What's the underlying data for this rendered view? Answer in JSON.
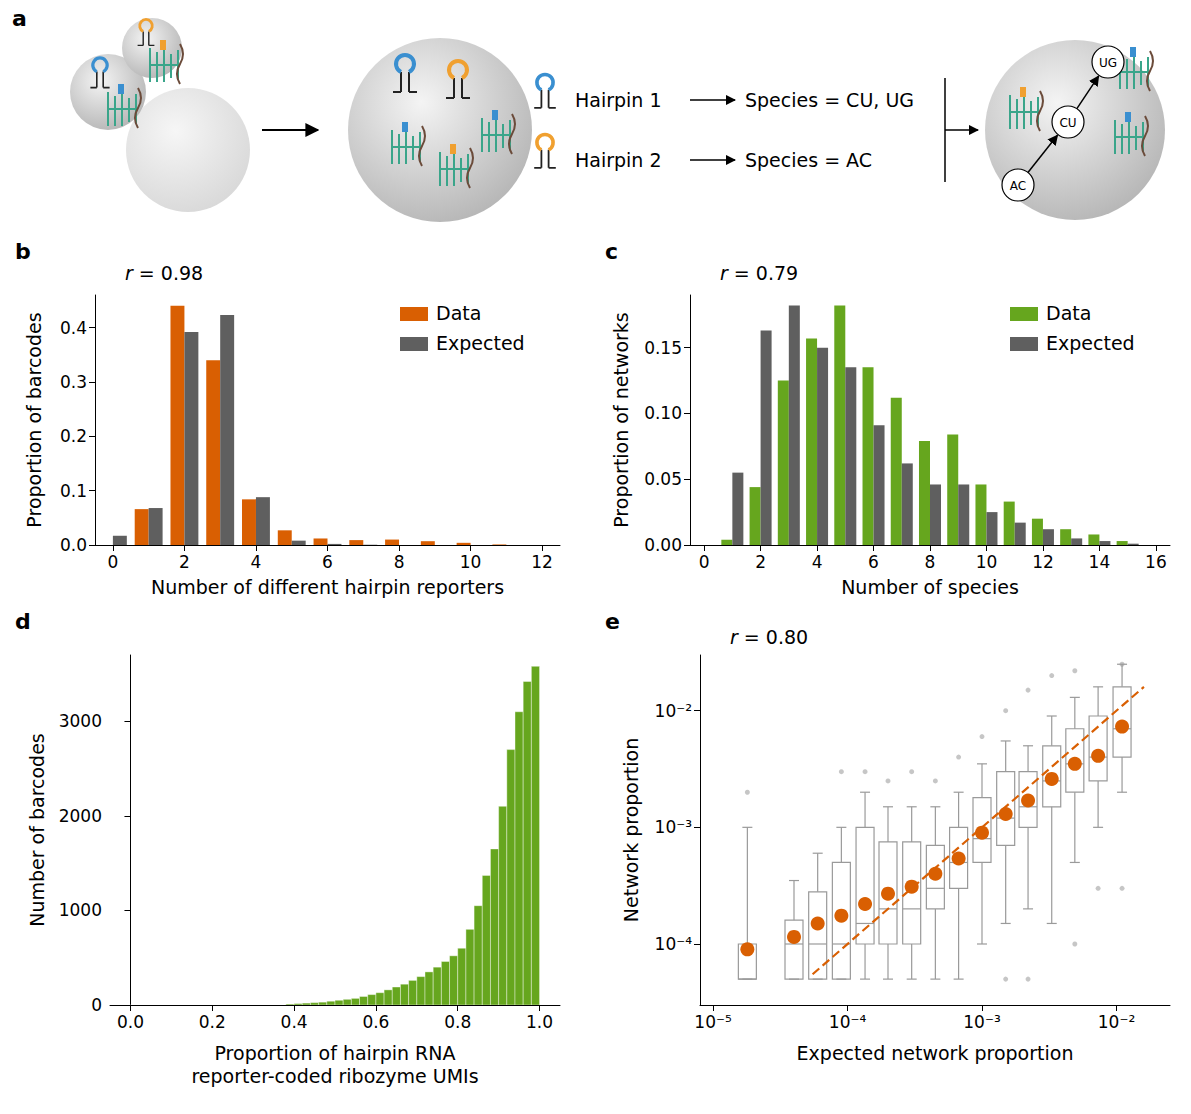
{
  "diagram": {
    "panel_label": "a",
    "hairpins": [
      {
        "name": "Hairpin 1",
        "species": "Species = CU, UG"
      },
      {
        "name": "Hairpin 2",
        "species": "Species = AC"
      }
    ],
    "network": {
      "nodes": [
        "AC",
        "CU",
        "UG"
      ],
      "edges": [
        [
          "AC",
          "CU"
        ],
        [
          "CU",
          "UG"
        ]
      ]
    }
  },
  "chart_data": [
    {
      "panel_label": "b",
      "type": "bar",
      "annotation": "r = 0.98",
      "x_label": "Number of different hairpin reporters",
      "y_label": "Proportion of barcodes",
      "categories": [
        "0",
        null,
        "2",
        null,
        "4",
        null,
        "6",
        null,
        "8",
        null,
        "10",
        null,
        "12"
      ],
      "series": [
        {
          "name": "Data",
          "color": "#d95f02",
          "values": [
            0,
            0.066,
            0.44,
            0.34,
            0.084,
            0.027,
            0.012,
            0.009,
            0.01,
            0.007,
            0.004,
            0.001,
            0
          ]
        },
        {
          "name": "Expected",
          "color": "#5f5f5f",
          "values": [
            0.017,
            0.068,
            0.392,
            0.423,
            0.088,
            0.008,
            0.002,
            0.0005,
            0,
            0,
            0,
            0,
            0
          ]
        }
      ],
      "ylim": [
        0,
        0.46
      ],
      "yticks": [
        {
          "value": 0,
          "label": "0.0"
        },
        {
          "value": 0.1,
          "label": "0.1"
        },
        {
          "value": 0.2,
          "label": "0.2"
        },
        {
          "value": 0.3,
          "label": "0.3"
        },
        {
          "value": 0.4,
          "label": "0.4"
        }
      ],
      "grid": false,
      "legend": "upper right"
    },
    {
      "panel_label": "c",
      "type": "bar",
      "annotation": "r = 0.79",
      "x_label": "Number of species",
      "y_label": "Proportion of networks",
      "categories": [
        "0",
        null,
        "2",
        null,
        "4",
        null,
        "6",
        null,
        "8",
        null,
        "10",
        null,
        "12",
        null,
        "14",
        null,
        "16"
      ],
      "series": [
        {
          "name": "Data",
          "color": "#66a61e",
          "values": [
            0,
            0.004,
            0.044,
            0.125,
            0.157,
            0.182,
            0.135,
            0.112,
            0.079,
            0.084,
            0.046,
            0.033,
            0.02,
            0.012,
            0.008,
            0.003,
            0
          ]
        },
        {
          "name": "Expected",
          "color": "#5f5f5f",
          "values": [
            0,
            0.055,
            0.163,
            0.182,
            0.15,
            0.135,
            0.091,
            0.062,
            0.046,
            0.046,
            0.025,
            0.017,
            0.012,
            0.005,
            0.003,
            0.001,
            0
          ]
        }
      ],
      "ylim": [
        0,
        0.19
      ],
      "yticks": [
        {
          "value": 0,
          "label": "0.00"
        },
        {
          "value": 0.05,
          "label": "0.05"
        },
        {
          "value": 0.1,
          "label": "0.10"
        },
        {
          "value": 0.15,
          "label": "0.15"
        }
      ],
      "grid": false,
      "legend": "upper right"
    },
    {
      "panel_label": "d",
      "type": "histogram",
      "x_label": "Proportion of hairpin RNA\nreporter-coded ribozyme UMIs",
      "y_label": "Number of barcodes",
      "color": "#66a61e",
      "bins": [
        0,
        0.02,
        0.04,
        0.06,
        0.08,
        0.1,
        0.12,
        0.14,
        0.16,
        0.18,
        0.2,
        0.22,
        0.24,
        0.26,
        0.28,
        0.3,
        0.32,
        0.34,
        0.36,
        0.38,
        0.4,
        0.42,
        0.44,
        0.46,
        0.48,
        0.5,
        0.52,
        0.54,
        0.56,
        0.58,
        0.6,
        0.62,
        0.64,
        0.66,
        0.68,
        0.7,
        0.72,
        0.74,
        0.76,
        0.78,
        0.8,
        0.82,
        0.84,
        0.86,
        0.88,
        0.9,
        0.92,
        0.94,
        0.96,
        0.98,
        1.0
      ],
      "counts": [
        0,
        0,
        0,
        0,
        0,
        0,
        0,
        0,
        0,
        0,
        0,
        0,
        0,
        0,
        0,
        0,
        0,
        0,
        0,
        10,
        15,
        20,
        25,
        30,
        40,
        50,
        60,
        70,
        90,
        110,
        130,
        160,
        190,
        220,
        260,
        300,
        350,
        400,
        460,
        520,
        600,
        800,
        1050,
        1370,
        1650,
        2100,
        2700,
        3100,
        3420,
        3580
      ],
      "xlim": [
        -0.05,
        1.05
      ],
      "xticks": [
        {
          "value": 0,
          "label": "0.0"
        },
        {
          "value": 0.2,
          "label": "0.2"
        },
        {
          "value": 0.4,
          "label": "0.4"
        },
        {
          "value": 0.6,
          "label": "0.6"
        },
        {
          "value": 0.8,
          "label": "0.8"
        },
        {
          "value": 1,
          "label": "1.0"
        }
      ],
      "ylim": [
        0,
        3700
      ],
      "yticks": [
        0,
        1000,
        2000,
        3000
      ],
      "grid": false
    },
    {
      "panel_label": "e",
      "type": "boxplot",
      "annotation": "r = 0.80",
      "x_label": "Expected network proportion",
      "y_label": "Network proportion",
      "log": true,
      "xlim": [
        8e-06,
        0.025
      ],
      "xticks": [
        {
          "value": 1e-05,
          "label": "10⁻⁵"
        },
        {
          "value": 0.0001,
          "label": "10⁻⁴"
        },
        {
          "value": 0.001,
          "label": "10⁻³"
        },
        {
          "value": 0.01,
          "label": "10⁻²"
        }
      ],
      "ylim": [
        3e-05,
        0.03
      ],
      "yticks": [
        {
          "value": 0.0001,
          "label": "10⁻⁴"
        },
        {
          "value": 0.001,
          "label": "10⁻³"
        },
        {
          "value": 0.01,
          "label": "10⁻²"
        }
      ],
      "grid": false,
      "series": [
        {
          "type": "boxplot",
          "color": "#9a9a9a",
          "boxes": [
            {
              "x": 1.8e-05,
              "whisker_low": 5e-05,
              "q1": 5e-05,
              "median": 5e-05,
              "q3": 0.0001,
              "whisker_high": 0.001
            },
            {
              "x": 4e-05,
              "whisker_low": 5e-05,
              "q1": 5e-05,
              "median": 0.0001,
              "q3": 0.00016,
              "whisker_high": 0.00035
            },
            {
              "x": 6e-05,
              "whisker_low": 5e-05,
              "q1": 5e-05,
              "median": 0.0001,
              "q3": 0.00028,
              "whisker_high": 0.0006
            },
            {
              "x": 9e-05,
              "whisker_low": 5e-05,
              "q1": 5e-05,
              "median": 0.0001,
              "q3": 0.0005,
              "whisker_high": 0.001
            },
            {
              "x": 0.000135,
              "whisker_low": 5e-05,
              "q1": 0.0001,
              "median": 0.00015,
              "q3": 0.001,
              "whisker_high": 0.002
            },
            {
              "x": 0.0002,
              "whisker_low": 5e-05,
              "q1": 0.0001,
              "median": 0.0002,
              "q3": 0.00075,
              "whisker_high": 0.0015
            },
            {
              "x": 0.0003,
              "whisker_low": 5e-05,
              "q1": 0.0001,
              "median": 0.0002,
              "q3": 0.00075,
              "whisker_high": 0.0015
            },
            {
              "x": 0.00045,
              "whisker_low": 5e-05,
              "q1": 0.0002,
              "median": 0.0003,
              "q3": 0.0007,
              "whisker_high": 0.0015
            },
            {
              "x": 0.00067,
              "whisker_low": 5e-05,
              "q1": 0.0003,
              "median": 0.0005,
              "q3": 0.001,
              "whisker_high": 0.002
            },
            {
              "x": 0.001,
              "whisker_low": 0.0001,
              "q1": 0.0005,
              "median": 0.0008,
              "q3": 0.0018,
              "whisker_high": 0.0035
            },
            {
              "x": 0.0015,
              "whisker_low": 0.00015,
              "q1": 0.0007,
              "median": 0.0012,
              "q3": 0.003,
              "whisker_high": 0.0055
            },
            {
              "x": 0.0022,
              "whisker_low": 0.0002,
              "q1": 0.001,
              "median": 0.0015,
              "q3": 0.003,
              "whisker_high": 0.005
            },
            {
              "x": 0.0033,
              "whisker_low": 0.00015,
              "q1": 0.0015,
              "median": 0.0025,
              "q3": 0.005,
              "whisker_high": 0.009
            },
            {
              "x": 0.0049,
              "whisker_low": 0.0005,
              "q1": 0.002,
              "median": 0.0035,
              "q3": 0.007,
              "whisker_high": 0.013
            },
            {
              "x": 0.0073,
              "whisker_low": 0.001,
              "q1": 0.0025,
              "median": 0.004,
              "q3": 0.009,
              "whisker_high": 0.016
            },
            {
              "x": 0.011,
              "whisker_low": 0.002,
              "q1": 0.004,
              "median": 0.007,
              "q3": 0.016,
              "whisker_high": 0.025
            }
          ]
        },
        {
          "type": "scatter",
          "color": "#808080",
          "marker": "circle",
          "x": [
            1.8e-05,
            9e-05,
            0.000135,
            0.0002,
            0.0003,
            0.00045,
            0.00067,
            0.001,
            0.0015,
            0.0022,
            0.0033,
            0.0049,
            0.0073,
            0.011,
            0.011,
            0.0049,
            0.0022,
            0.0015
          ],
          "values": [
            0.002,
            0.003,
            0.003,
            0.0025,
            0.003,
            0.0025,
            0.004,
            0.006,
            0.01,
            0.015,
            0.02,
            0.0001,
            0.0003,
            0.0003,
            0.025,
            0.022,
            5e-05,
            5e-05
          ]
        },
        {
          "type": "line",
          "color": "#d95f02",
          "line_style": "dashed",
          "x": [
            5.5e-05,
            0.016
          ],
          "values": [
            5.5e-05,
            0.016
          ]
        },
        {
          "type": "scatter",
          "color": "#d95f02",
          "marker": "circle",
          "x": [
            1.8e-05,
            4e-05,
            6e-05,
            9e-05,
            0.000135,
            0.0002,
            0.0003,
            0.00045,
            0.00067,
            0.001,
            0.0015,
            0.0022,
            0.0033,
            0.0049,
            0.0073,
            0.011
          ],
          "values": [
            9e-05,
            0.000115,
            0.00015,
            0.000175,
            0.00022,
            0.00027,
            0.00031,
            0.0004,
            0.00054,
            0.0009,
            0.0013,
            0.0017,
            0.0026,
            0.0035,
            0.0041,
            0.0073
          ]
        }
      ]
    }
  ]
}
